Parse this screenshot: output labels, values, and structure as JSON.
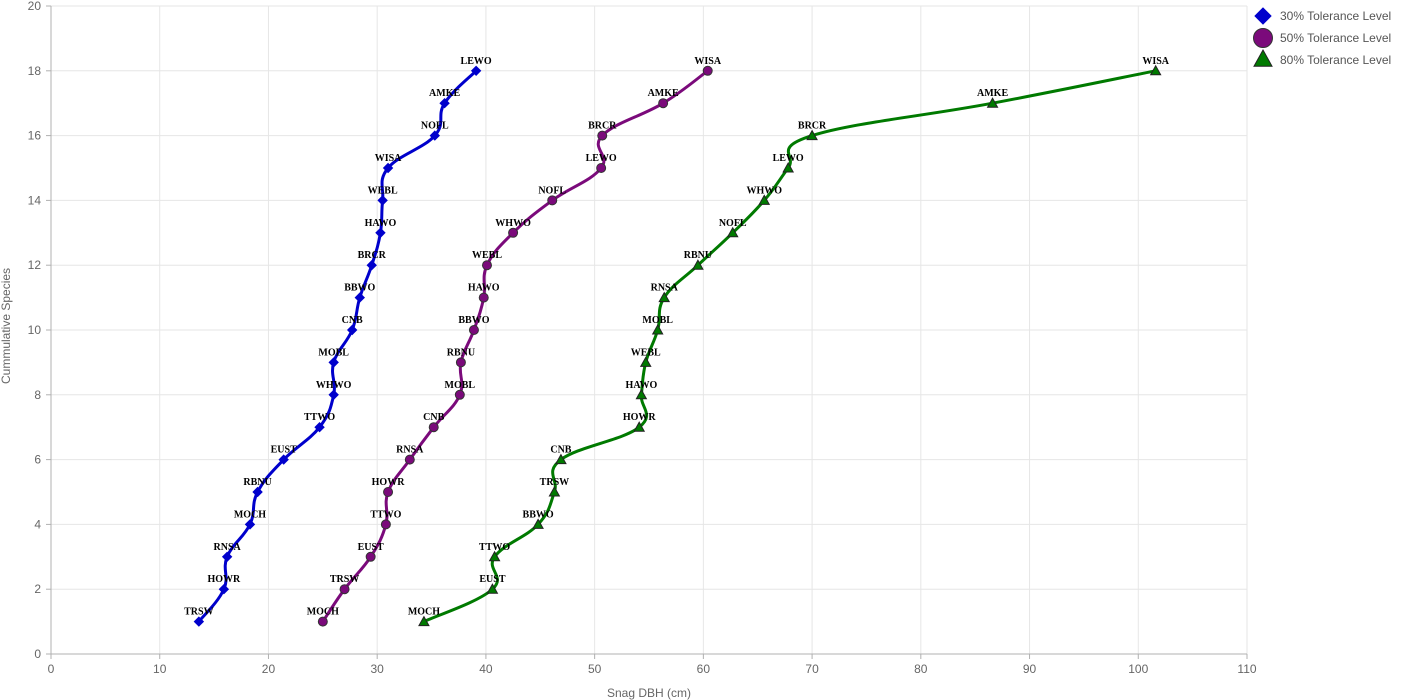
{
  "chart_data": {
    "type": "line",
    "xlabel": "Snag DBH (cm)",
    "ylabel": "Cummulative Species",
    "xlim": [
      0,
      110
    ],
    "ylim": [
      0,
      20
    ],
    "x_ticks": [
      0,
      10,
      20,
      30,
      40,
      50,
      60,
      70,
      80,
      90,
      100,
      110
    ],
    "y_ticks": [
      0,
      2,
      4,
      6,
      8,
      10,
      12,
      14,
      16,
      18,
      20
    ],
    "grid": true,
    "legend_position": "top-right",
    "series": [
      {
        "name": "30% Tolerance Level",
        "color": "#0000cc",
        "marker": "diamond",
        "points": [
          {
            "label": "TRSW",
            "x": 13.6,
            "y": 1
          },
          {
            "label": "HOWR",
            "x": 15.9,
            "y": 2
          },
          {
            "label": "RNSA",
            "x": 16.2,
            "y": 3
          },
          {
            "label": "MOCH",
            "x": 18.3,
            "y": 4
          },
          {
            "label": "RBNU",
            "x": 19.0,
            "y": 5
          },
          {
            "label": "EUST",
            "x": 21.4,
            "y": 6
          },
          {
            "label": "TTWO",
            "x": 24.7,
            "y": 7
          },
          {
            "label": "WHWO",
            "x": 26.0,
            "y": 8
          },
          {
            "label": "MOBL",
            "x": 26.0,
            "y": 9
          },
          {
            "label": "CNB",
            "x": 27.7,
            "y": 10
          },
          {
            "label": "BBWO",
            "x": 28.4,
            "y": 11
          },
          {
            "label": "BRCR",
            "x": 29.5,
            "y": 12
          },
          {
            "label": "HAWO",
            "x": 30.3,
            "y": 13
          },
          {
            "label": "WEBL",
            "x": 30.5,
            "y": 14
          },
          {
            "label": "WISA",
            "x": 31.0,
            "y": 15
          },
          {
            "label": "NOFL",
            "x": 35.3,
            "y": 16
          },
          {
            "label": "AMKE",
            "x": 36.2,
            "y": 17
          },
          {
            "label": "LEWO",
            "x": 39.1,
            "y": 18
          }
        ]
      },
      {
        "name": "50% Tolerance Level",
        "color": "#7b0a7b",
        "marker": "circle",
        "points": [
          {
            "label": "MOCH",
            "x": 25.0,
            "y": 1
          },
          {
            "label": "TRSW",
            "x": 27.0,
            "y": 2
          },
          {
            "label": "EUST",
            "x": 29.4,
            "y": 3
          },
          {
            "label": "TTWO",
            "x": 30.8,
            "y": 4
          },
          {
            "label": "HOWR",
            "x": 31.0,
            "y": 5
          },
          {
            "label": "RNSA",
            "x": 33.0,
            "y": 6
          },
          {
            "label": "CNB",
            "x": 35.2,
            "y": 7
          },
          {
            "label": "MOBL",
            "x": 37.6,
            "y": 8
          },
          {
            "label": "RBNU",
            "x": 37.7,
            "y": 9
          },
          {
            "label": "BBWO",
            "x": 38.9,
            "y": 10
          },
          {
            "label": "HAWO",
            "x": 39.8,
            "y": 11
          },
          {
            "label": "WEBL",
            "x": 40.1,
            "y": 12
          },
          {
            "label": "WHWO",
            "x": 42.5,
            "y": 13
          },
          {
            "label": "NOFL",
            "x": 46.1,
            "y": 14
          },
          {
            "label": "LEWO",
            "x": 50.6,
            "y": 15
          },
          {
            "label": "BRCR",
            "x": 50.7,
            "y": 16
          },
          {
            "label": "AMKE",
            "x": 56.3,
            "y": 17
          },
          {
            "label": "WISA",
            "x": 60.4,
            "y": 18
          }
        ]
      },
      {
        "name": "80% Tolerance Level",
        "color": "#007a00",
        "marker": "triangle",
        "points": [
          {
            "label": "MOCH",
            "x": 34.3,
            "y": 1
          },
          {
            "label": "EUST",
            "x": 40.6,
            "y": 2
          },
          {
            "label": "TTWO",
            "x": 40.8,
            "y": 3
          },
          {
            "label": "BBWO",
            "x": 44.8,
            "y": 4
          },
          {
            "label": "TRSW",
            "x": 46.3,
            "y": 5
          },
          {
            "label": "CNB",
            "x": 46.9,
            "y": 6
          },
          {
            "label": "HOWR",
            "x": 54.1,
            "y": 7
          },
          {
            "label": "HAWO",
            "x": 54.3,
            "y": 8
          },
          {
            "label": "WEBL",
            "x": 54.7,
            "y": 9
          },
          {
            "label": "MOBL",
            "x": 55.8,
            "y": 10
          },
          {
            "label": "RNSA",
            "x": 56.4,
            "y": 11
          },
          {
            "label": "RBNU",
            "x": 59.5,
            "y": 12
          },
          {
            "label": "NOFL",
            "x": 62.7,
            "y": 13
          },
          {
            "label": "WHWO",
            "x": 65.6,
            "y": 14
          },
          {
            "label": "LEWO",
            "x": 67.8,
            "y": 15
          },
          {
            "label": "BRCR",
            "x": 70.0,
            "y": 16
          },
          {
            "label": "AMKE",
            "x": 86.6,
            "y": 17
          },
          {
            "label": "WISA",
            "x": 101.6,
            "y": 18
          }
        ]
      }
    ]
  }
}
